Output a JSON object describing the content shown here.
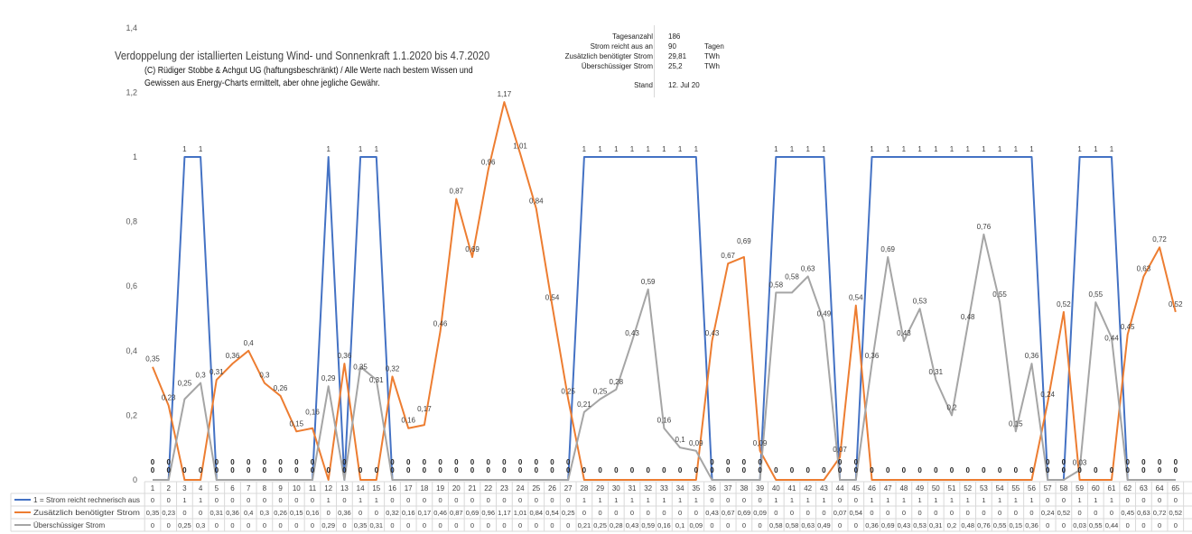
{
  "chart_data": {
    "type": "line",
    "title": "Verdoppelung der istallierten Leistung Wind- und Sonnenkraft 1.1.2020 bis 4.7.2020",
    "subtitle": [
      "(C) Rüdiger Stobbe & Achgut UG (haftungsbeschränkt) / Alle Werte nach bestem Wissen und",
      "Gewissen aus Energy-Charts ermittelt, aber ohne jegliche Gewähr."
    ],
    "ylim": [
      0,
      1.4
    ],
    "yticks": [
      "0",
      "0,2",
      "0,4",
      "0,6",
      "0,8",
      "1",
      "1,2",
      "1,4"
    ],
    "categories": [
      1,
      2,
      3,
      4,
      5,
      6,
      7,
      8,
      9,
      10,
      11,
      12,
      13,
      14,
      15,
      16,
      17,
      18,
      19,
      20,
      21,
      22,
      23,
      24,
      25,
      26,
      27,
      28,
      29,
      30,
      31,
      32,
      33,
      34,
      35,
      36,
      37,
      38,
      39,
      40,
      41,
      42,
      43,
      44,
      45,
      46,
      47,
      48,
      49,
      50,
      51,
      52,
      53,
      54,
      55,
      56,
      57,
      58,
      59,
      60,
      61,
      62,
      63,
      64,
      65
    ],
    "series": [
      {
        "name": "1 = Strom reicht rechnerisch aus",
        "color": "#4472c4",
        "values": [
          0,
          0,
          1,
          1,
          0,
          0,
          0,
          0,
          0,
          0,
          0,
          1,
          0,
          1,
          1,
          0,
          0,
          0,
          0,
          0,
          0,
          0,
          0,
          0,
          0,
          0,
          0,
          1,
          1,
          1,
          1,
          1,
          1,
          1,
          1,
          0,
          0,
          0,
          0,
          1,
          1,
          1,
          1,
          0,
          0,
          1,
          1,
          1,
          1,
          1,
          1,
          1,
          1,
          1,
          1,
          1,
          0,
          0,
          1,
          1,
          1,
          0,
          0,
          0,
          0
        ]
      },
      {
        "name": "Zusätzlich benötigter Strom",
        "color": "#ed7d31",
        "values": [
          0.35,
          0.23,
          0,
          0,
          0.31,
          0.36,
          0.4,
          0.3,
          0.26,
          0.15,
          0.16,
          0,
          0.36,
          0,
          0,
          0.32,
          0.16,
          0.17,
          0.46,
          0.87,
          0.69,
          0.96,
          1.17,
          1.01,
          0.84,
          0.54,
          0.25,
          0,
          0,
          0,
          0,
          0,
          0,
          0,
          0,
          0.43,
          0.67,
          0.69,
          0.09,
          0,
          0,
          0,
          0,
          0.07,
          0.54,
          0,
          0,
          0,
          0,
          0,
          0,
          0,
          0,
          0,
          0,
          0,
          0.24,
          0.52,
          0,
          0,
          0,
          0.45,
          0.63,
          0.72,
          0.52
        ]
      },
      {
        "name": "Überschüssiger Strom",
        "color": "#a5a5a5",
        "values": [
          0,
          0,
          0.25,
          0.3,
          0,
          0,
          0,
          0,
          0,
          0,
          0,
          0.29,
          0,
          0.35,
          0.31,
          0,
          0,
          0,
          0,
          0,
          0,
          0,
          0,
          0,
          0,
          0,
          0,
          0.21,
          0.25,
          0.28,
          0.43,
          0.59,
          0.16,
          0.1,
          0.09,
          0,
          0,
          0,
          0,
          0.58,
          0.58,
          0.63,
          0.49,
          0,
          0,
          0.36,
          0.69,
          0.43,
          0.53,
          0.31,
          0.2,
          0.48,
          0.76,
          0.55,
          0.15,
          0.36,
          0,
          0,
          0.03,
          0.55,
          0.44,
          0,
          0,
          0,
          0
        ]
      }
    ],
    "grid": false,
    "legend": "data-table-bottom"
  },
  "info": [
    {
      "key": "Tagesanzahl",
      "value": "186",
      "unit": ""
    },
    {
      "key": "Strom reicht aus an",
      "value": "90",
      "unit": "Tagen"
    },
    {
      "key": "Zusätzlich benötigter Strom",
      "value": "29,81",
      "unit": "TWh"
    },
    {
      "key": "Überschüssiger Strom",
      "value": "25,2",
      "unit": "TWh"
    },
    {
      "key": "Stand",
      "value": "12. Jul 20",
      "unit": ""
    }
  ]
}
